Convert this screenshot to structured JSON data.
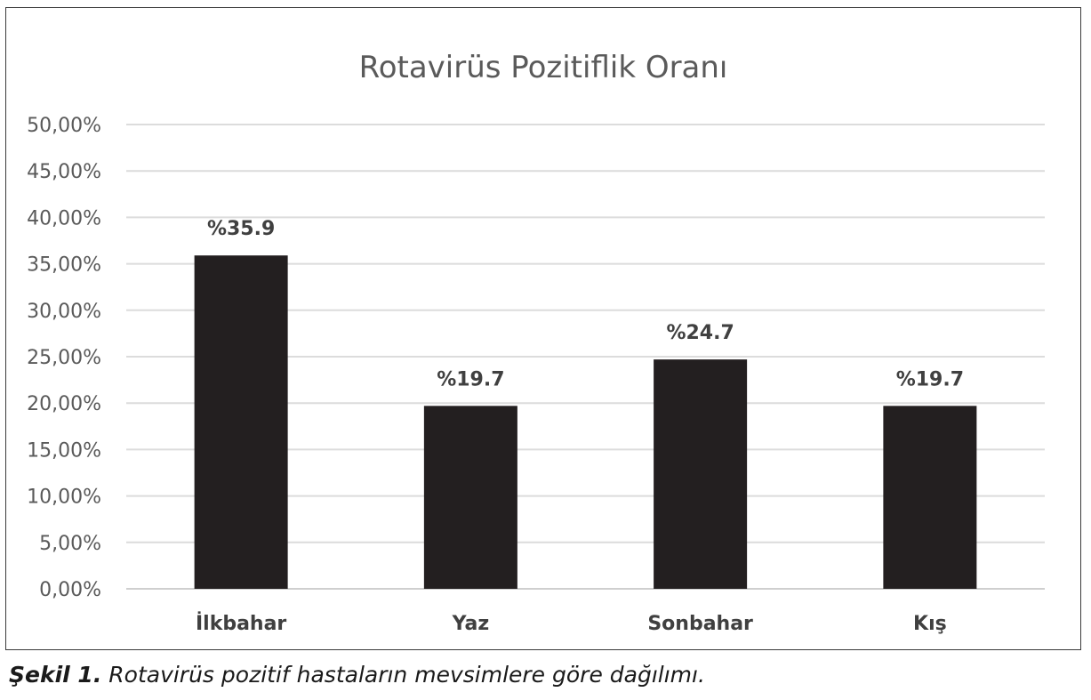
{
  "chart_data": {
    "type": "bar",
    "title": "Rotavirüs Pozitiflik Oranı",
    "categories": [
      "İlkbahar",
      "Yaz",
      "Sonbahar",
      "Kış"
    ],
    "values": [
      35.9,
      19.7,
      24.7,
      19.7
    ],
    "data_labels": [
      "%35.9",
      "%19.7",
      "%24.7",
      "%19.7"
    ],
    "y_ticks": [
      "0,00%",
      "5,00%",
      "10,00%",
      "15,00%",
      "20,00%",
      "25,00%",
      "30,00%",
      "35,00%",
      "40,00%",
      "45,00%",
      "50,00%"
    ],
    "ylim": [
      0,
      50
    ],
    "xlabel": "",
    "ylabel": "",
    "grid": true,
    "legend": "none",
    "bar_color": "#231f20"
  },
  "caption": {
    "label": "Şekil 1.",
    "text": "Rotavirüs pozitif hastaların mevsimlere göre dağılımı."
  }
}
